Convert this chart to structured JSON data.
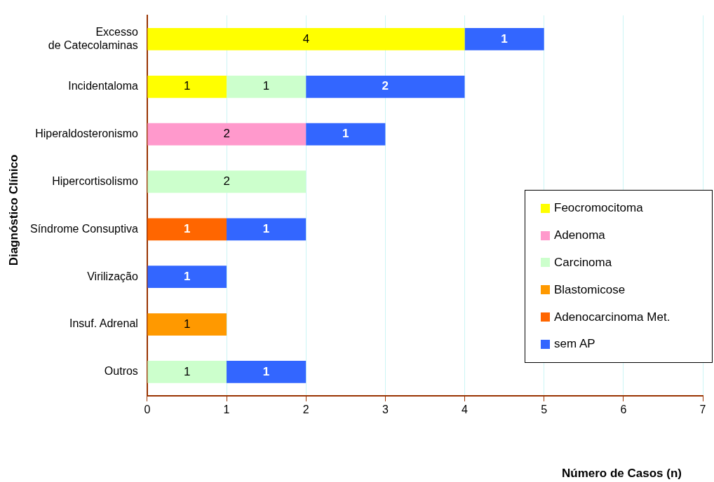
{
  "chart_data": {
    "type": "bar",
    "orientation": "horizontal",
    "stacked": true,
    "xlabel": "Número de Casos (n)",
    "ylabel": "Diagnóstico Clínico",
    "categories": [
      "Excesso de Catecolaminas",
      "Incidentaloma",
      "Hiperaldosteronismo",
      "Hipercortisolismo",
      "Síndrome Consuptiva",
      "Virilização",
      "Insuf. Adrenal",
      "Outros"
    ],
    "series": [
      {
        "name": "Feocromocitoma",
        "color": "#ffff00",
        "values": [
          4,
          1,
          null,
          null,
          null,
          null,
          null,
          null
        ]
      },
      {
        "name": "Adenoma",
        "color": "#ff99cc",
        "values": [
          null,
          null,
          2,
          null,
          null,
          null,
          null,
          null
        ]
      },
      {
        "name": "Carcinoma",
        "color": "#ccffcc",
        "values": [
          null,
          1,
          null,
          2,
          null,
          null,
          null,
          1
        ]
      },
      {
        "name": "Blastomicose",
        "color": "#ff9900",
        "values": [
          null,
          null,
          null,
          null,
          null,
          null,
          1,
          null
        ]
      },
      {
        "name": "Adenocarcinoma Met.",
        "color": "#ff6600",
        "values": [
          null,
          null,
          null,
          null,
          1,
          null,
          null,
          null
        ]
      },
      {
        "name": "sem AP",
        "color": "#3366ff",
        "values": [
          1,
          2,
          1,
          null,
          1,
          1,
          null,
          1
        ]
      }
    ],
    "xlim": [
      0,
      7
    ],
    "xticks": [
      0,
      1,
      2,
      3,
      4,
      5,
      6,
      7
    ],
    "grid": "x",
    "legend": "right",
    "data_labels": true
  }
}
